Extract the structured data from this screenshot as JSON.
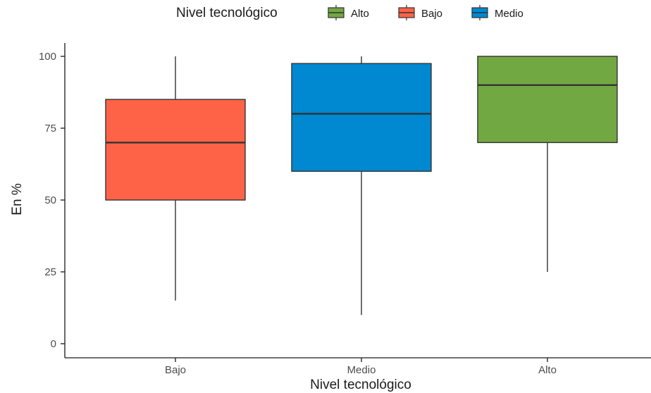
{
  "chart_data": {
    "type": "boxplot",
    "title": "",
    "xlabel": "Nivel tecnológico",
    "ylabel": "En %",
    "ylim": [
      0,
      100
    ],
    "yticks": [
      0,
      25,
      50,
      75,
      100
    ],
    "categories": [
      "Bajo",
      "Medio",
      "Alto"
    ],
    "boxes": [
      {
        "category": "Bajo",
        "min": 15,
        "q1": 50,
        "median": 70,
        "q3": 85,
        "max": 100,
        "color": "#FF6347"
      },
      {
        "category": "Medio",
        "min": 10,
        "q1": 60,
        "median": 80,
        "q3": 97.5,
        "max": 100,
        "color": "#0088D1"
      },
      {
        "category": "Alto",
        "min": 25,
        "q1": 70,
        "median": 90,
        "q3": 100,
        "max": 100,
        "color": "#72A842"
      }
    ],
    "legend": {
      "title": "Nivel tecnológico",
      "position": "top",
      "items": [
        {
          "label": "Alto",
          "color": "#72A842"
        },
        {
          "label": "Bajo",
          "color": "#FF6347"
        },
        {
          "label": "Medio",
          "color": "#0088D1"
        }
      ]
    },
    "grid": false
  }
}
